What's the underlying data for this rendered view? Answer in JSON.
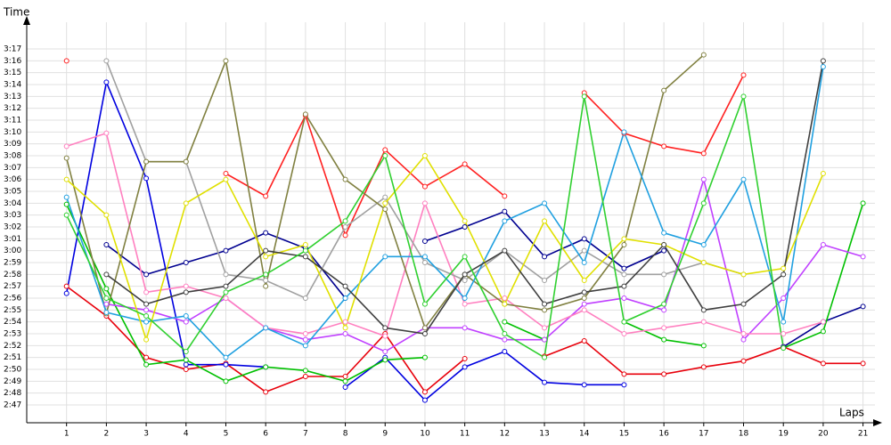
{
  "chart_data": {
    "type": "line",
    "y_label": "Time",
    "x_label": "Laps",
    "x": [
      1,
      2,
      3,
      4,
      5,
      6,
      7,
      8,
      9,
      10,
      11,
      12,
      13,
      14,
      15,
      16,
      17,
      18,
      19,
      20,
      21
    ],
    "xlim": [
      0,
      21.3
    ],
    "xticks": [
      1,
      2,
      3,
      4,
      5,
      6,
      7,
      8,
      9,
      10,
      11,
      12,
      13,
      14,
      15,
      16,
      17,
      18,
      19,
      20,
      21
    ],
    "ylim": [
      165.5,
      199.25
    ],
    "yticks": [
      {
        "value": 167,
        "label": "2:47"
      },
      {
        "value": 168,
        "label": "2:48"
      },
      {
        "value": 169,
        "label": "2:49"
      },
      {
        "value": 170,
        "label": "2:50"
      },
      {
        "value": 171,
        "label": "2:51"
      },
      {
        "value": 172,
        "label": "2:52"
      },
      {
        "value": 173,
        "label": "2:53"
      },
      {
        "value": 174,
        "label": "2:54"
      },
      {
        "value": 175,
        "label": "2:55"
      },
      {
        "value": 176,
        "label": "2:56"
      },
      {
        "value": 177,
        "label": "2:57"
      },
      {
        "value": 178,
        "label": "2:58"
      },
      {
        "value": 179,
        "label": "2:59"
      },
      {
        "value": 180,
        "label": "3:00"
      },
      {
        "value": 181,
        "label": "3:01"
      },
      {
        "value": 182,
        "label": "3:02"
      },
      {
        "value": 183,
        "label": "3:03"
      },
      {
        "value": 184,
        "label": "3:04"
      },
      {
        "value": 185,
        "label": "3:05"
      },
      {
        "value": 186,
        "label": "3:06"
      },
      {
        "value": 187,
        "label": "3:07"
      },
      {
        "value": 188,
        "label": "3:08"
      },
      {
        "value": 189,
        "label": "3:09"
      },
      {
        "value": 190,
        "label": "3:10"
      },
      {
        "value": 191,
        "label": "3:11"
      },
      {
        "value": 192,
        "label": "3:12"
      },
      {
        "value": 193,
        "label": "3:13"
      },
      {
        "value": 194,
        "label": "3:14"
      },
      {
        "value": 195,
        "label": "3:15"
      },
      {
        "value": 196,
        "label": "3:16"
      },
      {
        "value": 197,
        "label": "3:17"
      }
    ],
    "grid": true,
    "series": [
      {
        "color": "#e8000b",
        "values": [
          177.0,
          174.5,
          171.0,
          170.0,
          170.5,
          168.1,
          169.4,
          169.4,
          173.0,
          168.1,
          170.9,
          null,
          171.1,
          172.4,
          169.6,
          169.6,
          170.2,
          170.7,
          171.9,
          170.5,
          170.5
        ]
      },
      {
        "color": "#ff2020",
        "values": [
          196.0,
          null,
          null,
          null,
          186.5,
          184.6,
          191.4,
          181.3,
          188.5,
          185.4,
          187.3,
          184.6,
          null,
          193.3,
          189.9,
          188.8,
          188.2,
          194.8,
          null,
          null,
          null
        ]
      },
      {
        "color": "#0000e0",
        "values": [
          176.4,
          194.2,
          186.1,
          170.4,
          170.4,
          170.2,
          null,
          168.5,
          171.0,
          167.4,
          170.2,
          171.5,
          168.9,
          168.7,
          168.7,
          null,
          null,
          null,
          null,
          null,
          null
        ]
      },
      {
        "color": "#000090",
        "values": [
          null,
          180.5,
          178.0,
          179.0,
          180.0,
          181.5,
          180.2,
          176.0,
          null,
          180.8,
          182.0,
          183.3,
          179.5,
          181.0,
          178.5,
          180.0,
          null,
          null,
          171.9,
          174.0,
          175.3
        ]
      },
      {
        "color": "#00c000",
        "values": [
          183.9,
          176.8,
          170.4,
          170.8,
          169.0,
          170.2,
          169.9,
          169.0,
          170.8,
          171.0,
          null,
          174.0,
          172.5,
          null,
          174.0,
          172.5,
          172.0,
          null,
          171.8,
          173.2,
          184.0
        ]
      },
      {
        "color": "#c040ff",
        "values": [
          null,
          175.5,
          175.0,
          174.0,
          176.0,
          173.5,
          172.5,
          173.0,
          171.5,
          173.5,
          173.5,
          172.5,
          172.5,
          175.5,
          176.0,
          175.0,
          186.0,
          172.5,
          176.0,
          180.5,
          179.5
        ]
      },
      {
        "color": "#ff80c0",
        "values": [
          188.8,
          189.9,
          176.5,
          177.0,
          176.0,
          173.5,
          173.0,
          174.0,
          172.8,
          184.0,
          175.5,
          176.0,
          173.5,
          175.0,
          173.0,
          173.5,
          174.0,
          173.0,
          173.0,
          174.0,
          null
        ]
      },
      {
        "color": "#a0a0a0",
        "values": [
          null,
          196.0,
          187.5,
          187.5,
          178.0,
          177.5,
          176.0,
          182.0,
          184.5,
          179.0,
          177.5,
          180.0,
          177.5,
          180.0,
          178.0,
          178.0,
          179.0,
          178.0,
          null,
          null,
          null
        ]
      },
      {
        "color": "#808040",
        "values": [
          187.8,
          174.7,
          187.5,
          187.5,
          196.0,
          177.0,
          191.5,
          186.0,
          183.5,
          173.5,
          178.0,
          175.5,
          175.0,
          176.0,
          180.5,
          193.5,
          196.5,
          null,
          null,
          null,
          null
        ]
      },
      {
        "color": "#20a0e0",
        "values": [
          184.5,
          174.8,
          174.0,
          174.5,
          171.0,
          173.5,
          172.0,
          176.0,
          179.5,
          179.5,
          176.0,
          182.5,
          184.0,
          179.0,
          190.0,
          181.5,
          180.5,
          186.0,
          174.0,
          195.5,
          null
        ]
      },
      {
        "color": "#e0e000",
        "values": [
          186.0,
          183.0,
          172.5,
          184.0,
          186.0,
          179.5,
          180.5,
          173.5,
          184.0,
          188.0,
          182.5,
          175.5,
          182.5,
          177.5,
          181.0,
          180.5,
          179.0,
          178.0,
          178.5,
          186.5,
          null
        ]
      },
      {
        "color": "#404040",
        "values": [
          null,
          178.0,
          175.5,
          176.5,
          177.0,
          180.0,
          179.5,
          177.0,
          173.5,
          173.0,
          178.0,
          180.0,
          175.5,
          176.5,
          177.0,
          180.5,
          175.0,
          175.5,
          178.0,
          196.0,
          null
        ]
      },
      {
        "color": "#30d030",
        "values": [
          183.0,
          176.0,
          174.5,
          171.5,
          176.5,
          178.0,
          180.0,
          182.5,
          188.0,
          175.5,
          179.5,
          173.0,
          171.0,
          193.0,
          174.0,
          175.5,
          184.0,
          193.0,
          171.8,
          null,
          null
        ]
      }
    ]
  }
}
